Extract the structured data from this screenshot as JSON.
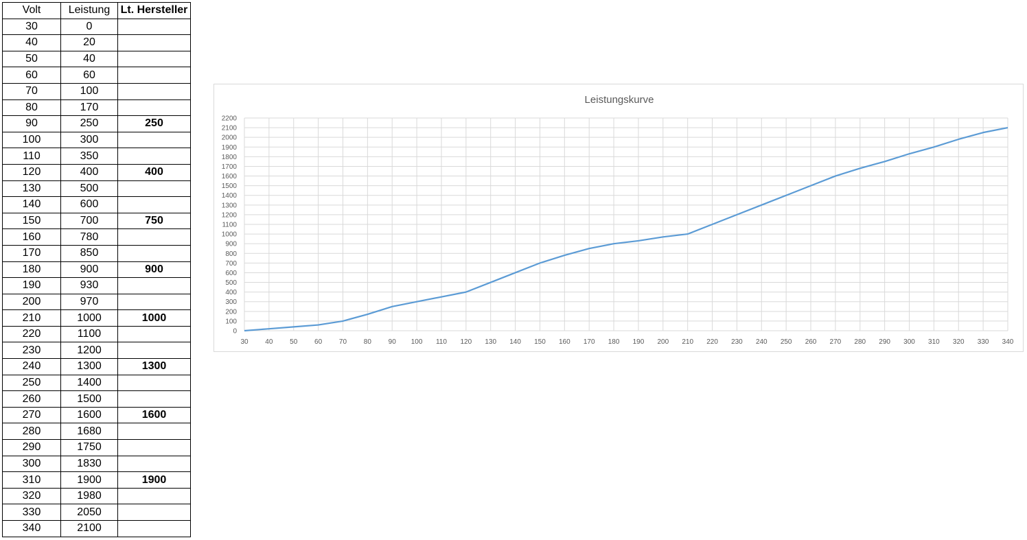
{
  "table": {
    "headers": [
      "Volt",
      "Leistung",
      "Lt. Hersteller"
    ],
    "rows": [
      [
        "30",
        "0",
        ""
      ],
      [
        "40",
        "20",
        ""
      ],
      [
        "50",
        "40",
        ""
      ],
      [
        "60",
        "60",
        ""
      ],
      [
        "70",
        "100",
        ""
      ],
      [
        "80",
        "170",
        ""
      ],
      [
        "90",
        "250",
        "250"
      ],
      [
        "100",
        "300",
        ""
      ],
      [
        "110",
        "350",
        ""
      ],
      [
        "120",
        "400",
        "400"
      ],
      [
        "130",
        "500",
        ""
      ],
      [
        "140",
        "600",
        ""
      ],
      [
        "150",
        "700",
        "750"
      ],
      [
        "160",
        "780",
        ""
      ],
      [
        "170",
        "850",
        ""
      ],
      [
        "180",
        "900",
        "900"
      ],
      [
        "190",
        "930",
        ""
      ],
      [
        "200",
        "970",
        ""
      ],
      [
        "210",
        "1000",
        "1000"
      ],
      [
        "220",
        "1100",
        ""
      ],
      [
        "230",
        "1200",
        ""
      ],
      [
        "240",
        "1300",
        "1300"
      ],
      [
        "250",
        "1400",
        ""
      ],
      [
        "260",
        "1500",
        ""
      ],
      [
        "270",
        "1600",
        "1600"
      ],
      [
        "280",
        "1680",
        ""
      ],
      [
        "290",
        "1750",
        ""
      ],
      [
        "300",
        "1830",
        ""
      ],
      [
        "310",
        "1900",
        "1900"
      ],
      [
        "320",
        "1980",
        ""
      ],
      [
        "330",
        "2050",
        ""
      ],
      [
        "340",
        "2100",
        ""
      ]
    ]
  },
  "chart_data": {
    "type": "line",
    "title": "Leistungskurve",
    "x": [
      30,
      40,
      50,
      60,
      70,
      80,
      90,
      100,
      110,
      120,
      130,
      140,
      150,
      160,
      170,
      180,
      190,
      200,
      210,
      220,
      230,
      240,
      250,
      260,
      270,
      280,
      290,
      300,
      310,
      320,
      330,
      340
    ],
    "series": [
      {
        "values": [
          0,
          20,
          40,
          60,
          100,
          170,
          250,
          300,
          350,
          400,
          500,
          600,
          700,
          780,
          850,
          900,
          930,
          970,
          1000,
          1100,
          1200,
          1300,
          1400,
          1500,
          1600,
          1680,
          1750,
          1830,
          1900,
          1980,
          2050,
          2100
        ],
        "color": "#5b9bd5"
      }
    ],
    "ylim": [
      0,
      2200
    ],
    "ytick_step": 100,
    "grid": true,
    "legend": "none"
  }
}
